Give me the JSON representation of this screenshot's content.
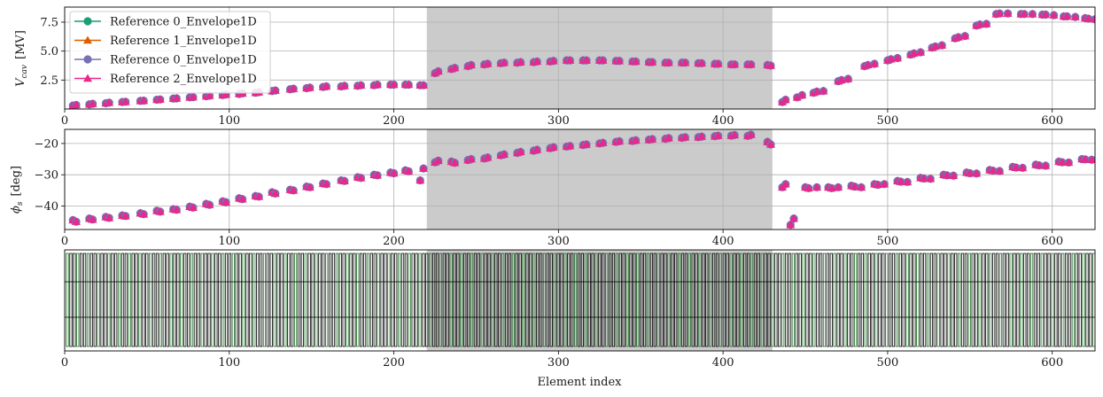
{
  "figure": {
    "xlabel": "Element index",
    "xlim": [
      0,
      626
    ],
    "xticks": [
      0,
      100,
      200,
      300,
      400,
      500,
      600
    ],
    "shaded_region": [
      220,
      430
    ],
    "shade_color": "#cbcbcb",
    "grid": true
  },
  "chart_data": [
    {
      "type": "scatter",
      "panel": "top",
      "ylabel_main": "V",
      "ylabel_sub": "cav",
      "ylabel_unit": "[MV]",
      "ylim": [
        0,
        8.8
      ],
      "yticks": [
        2.5,
        5.0,
        7.5
      ],
      "ytick_labels": [
        "2.5",
        "5.0",
        "7.5"
      ],
      "legend_position": "top-left",
      "series": [
        {
          "name": "Reference 0_Envelope1D",
          "color": "#1b9e77",
          "marker": "circle"
        },
        {
          "name": "Reference 1_Envelope1D",
          "color": "#d95f02",
          "marker": "triangle"
        },
        {
          "name": "Reference 0_Envelope1D",
          "color": "#7570b3",
          "marker": "circle"
        },
        {
          "name": "Reference 2_Envelope1D",
          "color": "#e7298a",
          "marker": "triangle"
        }
      ],
      "points": [
        [
          5,
          0.3
        ],
        [
          7,
          0.35
        ],
        [
          15,
          0.4
        ],
        [
          17,
          0.45
        ],
        [
          25,
          0.5
        ],
        [
          27,
          0.55
        ],
        [
          35,
          0.6
        ],
        [
          37,
          0.62
        ],
        [
          46,
          0.7
        ],
        [
          48,
          0.72
        ],
        [
          56,
          0.8
        ],
        [
          58,
          0.82
        ],
        [
          66,
          0.9
        ],
        [
          68,
          0.92
        ],
        [
          76,
          1.0
        ],
        [
          78,
          1.02
        ],
        [
          86,
          1.1
        ],
        [
          88,
          1.15
        ],
        [
          96,
          1.2
        ],
        [
          98,
          1.25
        ],
        [
          106,
          1.3
        ],
        [
          108,
          1.35
        ],
        [
          116,
          1.4
        ],
        [
          118,
          1.45
        ],
        [
          126,
          1.55
        ],
        [
          128,
          1.6
        ],
        [
          137,
          1.7
        ],
        [
          139,
          1.75
        ],
        [
          147,
          1.8
        ],
        [
          149,
          1.85
        ],
        [
          157,
          1.9
        ],
        [
          159,
          1.95
        ],
        [
          168,
          1.95
        ],
        [
          170,
          2.0
        ],
        [
          178,
          2.0
        ],
        [
          180,
          2.05
        ],
        [
          188,
          2.05
        ],
        [
          190,
          2.1
        ],
        [
          198,
          2.1
        ],
        [
          200,
          2.1
        ],
        [
          207,
          2.1
        ],
        [
          209,
          2.1
        ],
        [
          216,
          2.05
        ],
        [
          218,
          2.05
        ],
        [
          225,
          3.1
        ],
        [
          227,
          3.25
        ],
        [
          235,
          3.45
        ],
        [
          237,
          3.55
        ],
        [
          245,
          3.7
        ],
        [
          247,
          3.8
        ],
        [
          255,
          3.85
        ],
        [
          257,
          3.9
        ],
        [
          265,
          3.95
        ],
        [
          267,
          4.0
        ],
        [
          275,
          4.0
        ],
        [
          277,
          4.05
        ],
        [
          285,
          4.05
        ],
        [
          287,
          4.1
        ],
        [
          295,
          4.1
        ],
        [
          297,
          4.15
        ],
        [
          305,
          4.2
        ],
        [
          307,
          4.2
        ],
        [
          315,
          4.2
        ],
        [
          317,
          4.2
        ],
        [
          325,
          4.2
        ],
        [
          327,
          4.2
        ],
        [
          335,
          4.15
        ],
        [
          337,
          4.15
        ],
        [
          345,
          4.1
        ],
        [
          347,
          4.1
        ],
        [
          355,
          4.05
        ],
        [
          357,
          4.05
        ],
        [
          365,
          4.0
        ],
        [
          367,
          4.0
        ],
        [
          375,
          4.0
        ],
        [
          377,
          4.0
        ],
        [
          385,
          3.95
        ],
        [
          387,
          3.95
        ],
        [
          395,
          3.9
        ],
        [
          397,
          3.9
        ],
        [
          405,
          3.85
        ],
        [
          407,
          3.85
        ],
        [
          415,
          3.85
        ],
        [
          417,
          3.85
        ],
        [
          427,
          3.8
        ],
        [
          429,
          3.75
        ],
        [
          436,
          0.6
        ],
        [
          438,
          0.8
        ],
        [
          445,
          1.0
        ],
        [
          448,
          1.2
        ],
        [
          455,
          1.4
        ],
        [
          457,
          1.5
        ],
        [
          461,
          1.55
        ],
        [
          470,
          2.4
        ],
        [
          472,
          2.5
        ],
        [
          476,
          2.6
        ],
        [
          486,
          3.7
        ],
        [
          488,
          3.8
        ],
        [
          492,
          3.9
        ],
        [
          500,
          4.2
        ],
        [
          502,
          4.3
        ],
        [
          506,
          4.4
        ],
        [
          514,
          4.7
        ],
        [
          516,
          4.8
        ],
        [
          520,
          4.9
        ],
        [
          527,
          5.3
        ],
        [
          529,
          5.4
        ],
        [
          533,
          5.5
        ],
        [
          541,
          6.1
        ],
        [
          543,
          6.2
        ],
        [
          547,
          6.3
        ],
        [
          554,
          7.2
        ],
        [
          556,
          7.3
        ],
        [
          560,
          7.35
        ],
        [
          566,
          8.2
        ],
        [
          568,
          8.25
        ],
        [
          573,
          8.25
        ],
        [
          581,
          8.2
        ],
        [
          583,
          8.2
        ],
        [
          588,
          8.2
        ],
        [
          594,
          8.15
        ],
        [
          596,
          8.15
        ],
        [
          601,
          8.1
        ],
        [
          607,
          8.0
        ],
        [
          609,
          8.0
        ],
        [
          614,
          7.95
        ],
        [
          620,
          7.85
        ],
        [
          622,
          7.8
        ],
        [
          626,
          7.75
        ]
      ]
    },
    {
      "type": "scatter",
      "panel": "middle",
      "ylabel_main": "ϕ",
      "ylabel_sub": "s",
      "ylabel_unit": "[deg]",
      "ylim": [
        -47.5,
        -15.5
      ],
      "yticks": [
        -40,
        -30,
        -20
      ],
      "ytick_labels": [
        "−40",
        "−30",
        "−20"
      ],
      "points": [
        [
          5,
          -44.5
        ],
        [
          7,
          -45.0
        ],
        [
          15,
          -44.0
        ],
        [
          17,
          -44.3
        ],
        [
          25,
          -43.5
        ],
        [
          27,
          -43.8
        ],
        [
          35,
          -43.0
        ],
        [
          37,
          -43.2
        ],
        [
          46,
          -42.3
        ],
        [
          48,
          -42.6
        ],
        [
          56,
          -41.5
        ],
        [
          58,
          -41.8
        ],
        [
          66,
          -41.0
        ],
        [
          68,
          -41.2
        ],
        [
          76,
          -40.2
        ],
        [
          78,
          -40.5
        ],
        [
          86,
          -39.3
        ],
        [
          88,
          -39.6
        ],
        [
          96,
          -38.5
        ],
        [
          98,
          -38.8
        ],
        [
          106,
          -37.5
        ],
        [
          108,
          -37.8
        ],
        [
          116,
          -36.8
        ],
        [
          118,
          -37.0
        ],
        [
          126,
          -35.6
        ],
        [
          128,
          -36.0
        ],
        [
          137,
          -34.8
        ],
        [
          139,
          -35.0
        ],
        [
          147,
          -33.8
        ],
        [
          149,
          -34.0
        ],
        [
          157,
          -32.8
        ],
        [
          159,
          -33.0
        ],
        [
          168,
          -31.8
        ],
        [
          170,
          -32.0
        ],
        [
          178,
          -30.8
        ],
        [
          180,
          -31.0
        ],
        [
          188,
          -30.0
        ],
        [
          190,
          -30.2
        ],
        [
          198,
          -29.3
        ],
        [
          200,
          -29.5
        ],
        [
          207,
          -28.6
        ],
        [
          209,
          -28.9
        ],
        [
          216,
          -31.8
        ],
        [
          218,
          -28.0
        ],
        [
          225,
          -26.0
        ],
        [
          227,
          -25.5
        ],
        [
          235,
          -25.8
        ],
        [
          237,
          -26.2
        ],
        [
          245,
          -25.3
        ],
        [
          247,
          -25.0
        ],
        [
          255,
          -24.8
        ],
        [
          257,
          -24.5
        ],
        [
          265,
          -23.8
        ],
        [
          267,
          -23.5
        ],
        [
          275,
          -23.0
        ],
        [
          277,
          -22.7
        ],
        [
          285,
          -22.3
        ],
        [
          287,
          -22.0
        ],
        [
          295,
          -21.5
        ],
        [
          297,
          -21.2
        ],
        [
          305,
          -21.0
        ],
        [
          307,
          -20.8
        ],
        [
          315,
          -20.5
        ],
        [
          317,
          -20.3
        ],
        [
          325,
          -20.0
        ],
        [
          327,
          -19.8
        ],
        [
          335,
          -19.5
        ],
        [
          337,
          -19.3
        ],
        [
          345,
          -19.2
        ],
        [
          347,
          -19.0
        ],
        [
          355,
          -18.8
        ],
        [
          357,
          -18.6
        ],
        [
          365,
          -18.5
        ],
        [
          367,
          -18.3
        ],
        [
          375,
          -18.2
        ],
        [
          377,
          -18.0
        ],
        [
          385,
          -18.0
        ],
        [
          387,
          -17.8
        ],
        [
          395,
          -17.7
        ],
        [
          397,
          -17.5
        ],
        [
          405,
          -17.5
        ],
        [
          407,
          -17.3
        ],
        [
          415,
          -17.6
        ],
        [
          417,
          -17.2
        ],
        [
          427,
          -19.5
        ],
        [
          429,
          -20.3
        ],
        [
          436,
          -34.0
        ],
        [
          438,
          -33.0
        ],
        [
          441,
          -46.0
        ],
        [
          443,
          -44.0
        ],
        [
          450,
          -34.0
        ],
        [
          452,
          -34.3
        ],
        [
          457,
          -34.0
        ],
        [
          464,
          -34.0
        ],
        [
          466,
          -34.3
        ],
        [
          470,
          -34.0
        ],
        [
          478,
          -33.5
        ],
        [
          480,
          -33.8
        ],
        [
          484,
          -34.0
        ],
        [
          492,
          -33.0
        ],
        [
          494,
          -33.2
        ],
        [
          498,
          -33.0
        ],
        [
          506,
          -32.0
        ],
        [
          508,
          -32.2
        ],
        [
          512,
          -32.3
        ],
        [
          520,
          -31.0
        ],
        [
          522,
          -31.2
        ],
        [
          526,
          -31.3
        ],
        [
          534,
          -30.0
        ],
        [
          536,
          -30.2
        ],
        [
          540,
          -30.3
        ],
        [
          548,
          -29.3
        ],
        [
          550,
          -29.5
        ],
        [
          554,
          -29.6
        ],
        [
          562,
          -28.5
        ],
        [
          564,
          -28.7
        ],
        [
          568,
          -28.8
        ],
        [
          576,
          -27.5
        ],
        [
          578,
          -27.7
        ],
        [
          582,
          -27.8
        ],
        [
          590,
          -26.8
        ],
        [
          592,
          -27.0
        ],
        [
          596,
          -27.1
        ],
        [
          604,
          -25.8
        ],
        [
          606,
          -26.0
        ],
        [
          610,
          -26.1
        ],
        [
          618,
          -25.0
        ],
        [
          620,
          -25.1
        ],
        [
          624,
          -25.2
        ]
      ]
    },
    {
      "type": "structure",
      "panel": "bottom",
      "element_colors": [
        "#000000",
        "#176b1f"
      ]
    }
  ]
}
